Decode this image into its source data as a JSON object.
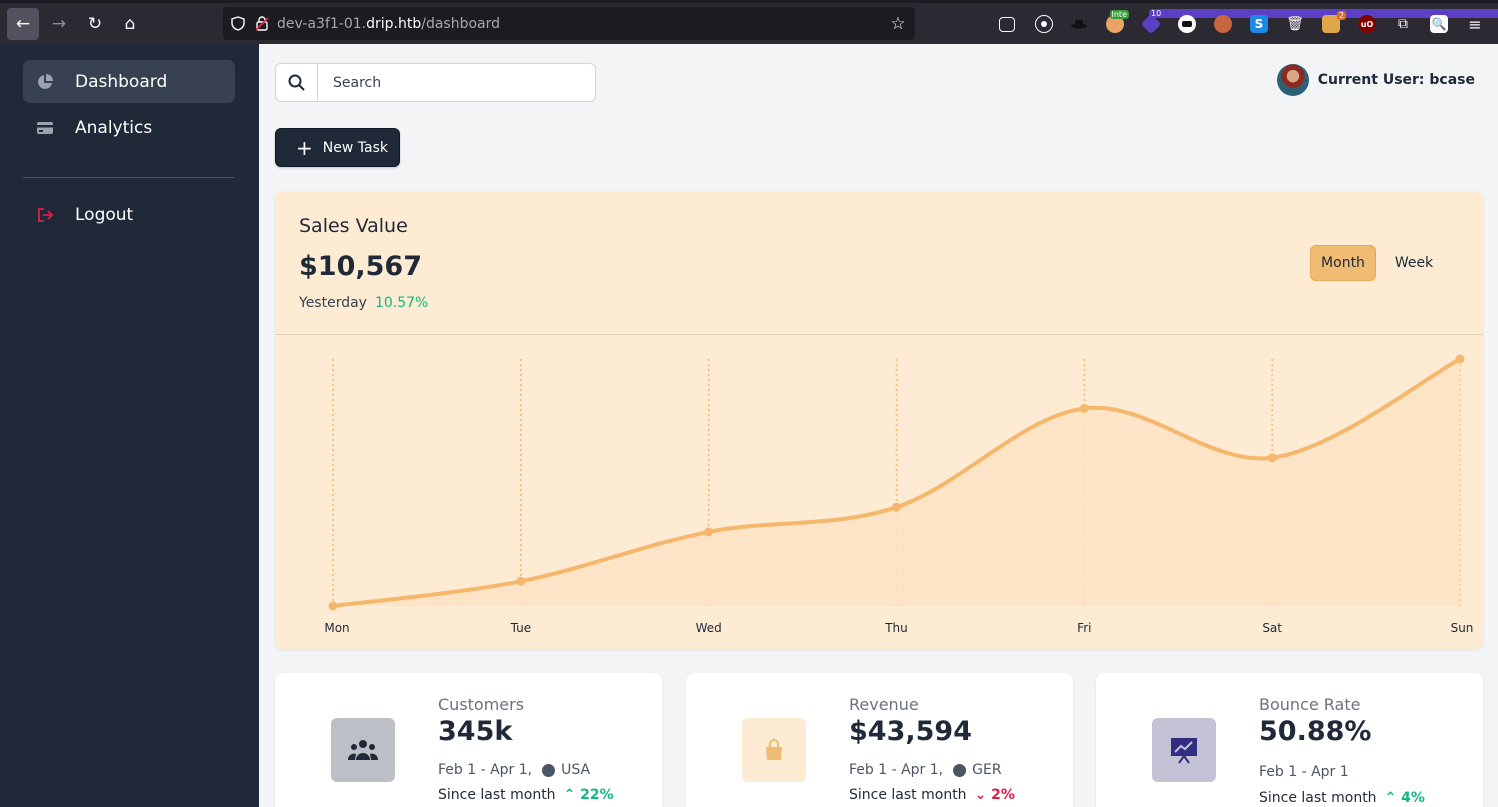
{
  "browser": {
    "url_prefix": "dev-a3f1-01.",
    "url_domain": "drip.htb",
    "url_path": "/dashboard",
    "extensions": [
      {
        "icon": "pocket-icon"
      },
      {
        "icon": "account-icon"
      },
      {
        "icon": "hat-icon"
      },
      {
        "icon": "wappalyzer-icon",
        "badge": "Inte"
      },
      {
        "icon": "extension-purple-icon",
        "badge": "10"
      },
      {
        "icon": "mask-icon"
      },
      {
        "icon": "cookie-icon"
      },
      {
        "icon": "s-extension-icon"
      },
      {
        "icon": "trash-icon"
      },
      {
        "icon": "foxy-icon",
        "badge": "2"
      },
      {
        "icon": "ublock-icon"
      },
      {
        "icon": "extensions-icon"
      },
      {
        "icon": "search-extension-icon"
      },
      {
        "icon": "menu-icon"
      }
    ]
  },
  "sidebar": {
    "items": [
      {
        "label": "Dashboard",
        "icon": "pie-chart-icon"
      },
      {
        "label": "Analytics",
        "icon": "credit-card-icon"
      }
    ],
    "logout": {
      "label": "Logout",
      "icon": "logout-icon"
    }
  },
  "header": {
    "search_placeholder": "Search",
    "user_label": "Current User: bcase"
  },
  "actions": {
    "new_task": "New Task"
  },
  "sales": {
    "title": "Sales Value",
    "value": "$10,567",
    "sub_label": "Yesterday",
    "sub_change": "10.57%",
    "toggle_month": "Month",
    "toggle_week": "Week"
  },
  "chart_data": {
    "type": "area",
    "categories": [
      "Mon",
      "Tue",
      "Wed",
      "Thu",
      "Fri",
      "Sat",
      "Sun"
    ],
    "values": [
      0,
      10,
      30,
      40,
      80,
      60,
      100
    ],
    "ylim": [
      0,
      100
    ],
    "grid": "vertical-dotted",
    "color": "#f5b76b"
  },
  "stats": [
    {
      "title": "Customers",
      "value": "345k",
      "range": "Feb 1 - Apr 1,",
      "region": "USA",
      "trend_label": "Since last month",
      "trend": "22%",
      "direction": "up",
      "icon": "users-icon",
      "icon_bg": "#bcc0c6"
    },
    {
      "title": "Revenue",
      "value": "$43,594",
      "range": "Feb 1 - Apr 1,",
      "region": "GER",
      "trend_label": "Since last month",
      "trend": "2%",
      "direction": "down",
      "icon": "shopping-bag-icon",
      "icon_bg": "#fdebd3"
    },
    {
      "title": "Bounce Rate",
      "value": "50.88%",
      "range": "Feb 1 - Apr 1",
      "region": "",
      "trend_label": "Since last month",
      "trend": "4%",
      "direction": "up",
      "icon": "presentation-chart-icon",
      "icon_bg": "#c4c2d5"
    }
  ]
}
